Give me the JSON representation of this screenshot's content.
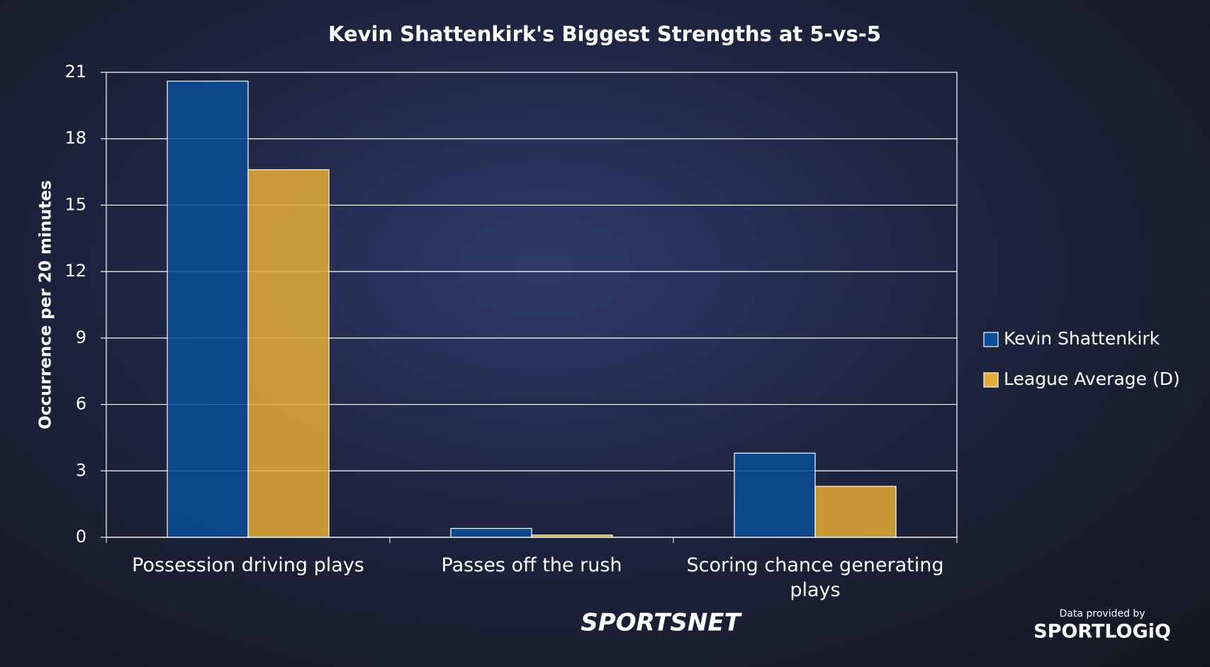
{
  "chart_data": {
    "type": "bar",
    "title": "Kevin Shattenkirk's Biggest Strengths at 5-vs-5",
    "y_label": "Occurrence per 20 minutes",
    "categories": [
      "Possession driving plays",
      "Passes off the rush",
      "Scoring chance generating plays"
    ],
    "series": [
      {
        "name": "Kevin Shattenkirk",
        "color": "#0b4d96",
        "values": [
          20.6,
          0.4,
          3.8
        ]
      },
      {
        "name": "League Average (D)",
        "color": "#e5ad32",
        "values": [
          16.6,
          0.1,
          2.3
        ]
      }
    ],
    "ylim": [
      0,
      21
    ],
    "yticks": [
      0,
      3,
      6,
      9,
      12,
      15,
      18,
      21
    ],
    "grid": true,
    "legend": "right"
  },
  "branding": {
    "network": "SPORTSNET",
    "credit": "Data provided by",
    "provider": "SPORTLOGiQ"
  }
}
